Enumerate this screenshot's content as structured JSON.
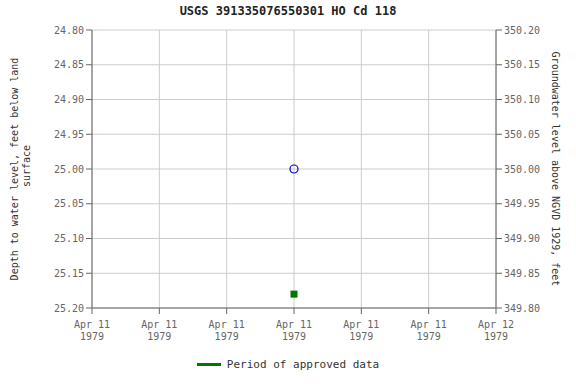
{
  "chart_data": {
    "type": "scatter",
    "title": "USGS 391335076550301 HO Cd 118",
    "y_label": "Depth to water level, feet below land\n surface",
    "y2_label": "Groundwater level above NGVD 1929, feet",
    "categories": [
      "Apr 11\n1979",
      "Apr 11\n1979",
      "Apr 11\n1979",
      "Apr 11\n1979",
      "Apr 11\n1979",
      "Apr 11\n1979",
      "Apr 12\n1979"
    ],
    "ylim": [
      25.2,
      24.8
    ],
    "yticks": [
      {
        "value": 24.8,
        "label": "24.80"
      },
      24.85,
      {
        "value": 24.9,
        "label": "24.90"
      },
      24.95,
      {
        "value": 25.0,
        "label": "25.00"
      },
      25.05,
      {
        "value": 25.1,
        "label": "25.10"
      },
      25.15,
      {
        "value": 25.2,
        "label": "25.20"
      }
    ],
    "y2lim": [
      349.8,
      350.2
    ],
    "y2ticks": [
      {
        "value": 349.8,
        "label": "349.80"
      },
      349.85,
      {
        "value": 349.9,
        "label": "349.90"
      },
      349.95,
      {
        "value": 350.0,
        "label": "350.00"
      },
      350.05,
      {
        "value": 350.1,
        "label": "350.10"
      },
      350.15,
      {
        "value": 350.2,
        "label": "350.20"
      }
    ],
    "grid": true,
    "legend": "bottom",
    "series": [
      {
        "values": [
          null,
          null,
          null,
          25.0,
          null,
          null,
          null
        ],
        "color": "#0000cc",
        "marker": "open_circle"
      },
      {
        "name": "Period of approved data",
        "values": [
          null,
          null,
          null,
          25.18,
          null,
          null,
          null
        ],
        "color": "#007700",
        "marker": "square"
      }
    ]
  }
}
